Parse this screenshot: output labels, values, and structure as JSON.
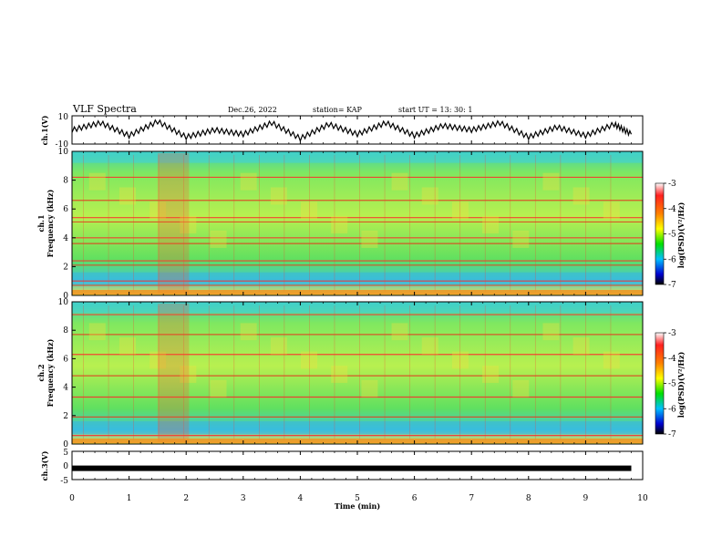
{
  "header": {
    "title": "VLF Spectra",
    "date": "Dec.26, 2022",
    "station": "station= KAP",
    "start": "start  UT =   13: 30: 1"
  },
  "colorbar": {
    "label": "log(PSD)(V²/Hz)",
    "ticks": [
      "-3",
      "-4",
      "-5",
      "-6",
      "-7"
    ],
    "colors": [
      "#ff2020",
      "#ff7f00",
      "#ffff00",
      "#00e000",
      "#00c0ff",
      "#0000cc",
      "#000000"
    ]
  },
  "chart_data": [
    {
      "type": "line",
      "panel": "ch1_waveform",
      "ylabel": "ch.1(V)",
      "ylim": [
        -10,
        10
      ],
      "yticks": [
        "10",
        "-10"
      ],
      "x": [
        0,
        0.5,
        1.0,
        1.5,
        2.0,
        2.5,
        3.0,
        3.5,
        4.0,
        4.5,
        5.0,
        5.5,
        6.0,
        6.5,
        7.0,
        7.5,
        8.0,
        8.5,
        9.0,
        9.5,
        9.8
      ],
      "values": [
        0,
        5,
        -4,
        6,
        -5,
        0,
        -3,
        5,
        -6,
        4,
        -3,
        5,
        -4,
        3,
        0,
        5,
        -5,
        2,
        -4,
        4,
        -3
      ]
    },
    {
      "type": "heatmap",
      "panel": "ch1_spectrogram",
      "ylabel_top": "ch.1",
      "ylabel": "Frequency (kHz)",
      "ylim": [
        0,
        10
      ],
      "yticks": [
        "0",
        "2",
        "4",
        "6",
        "8",
        "10"
      ],
      "xlim": [
        0,
        10
      ]
    },
    {
      "type": "heatmap",
      "panel": "ch2_spectrogram",
      "ylabel_top": "ch.2",
      "ylabel": "Frequency (kHz)",
      "ylim": [
        0,
        10
      ],
      "yticks": [
        "0",
        "2",
        "4",
        "6",
        "8",
        "10"
      ],
      "xlim": [
        0,
        10
      ]
    },
    {
      "type": "line",
      "panel": "ch3_waveform",
      "ylabel": "ch.3(V)",
      "ylim": [
        -5,
        5
      ],
      "yticks": [
        "5",
        "0",
        "-5"
      ],
      "x": [
        0,
        9.8
      ],
      "values": [
        -1,
        -1
      ]
    }
  ],
  "xaxis": {
    "label": "Time  (min)",
    "ticks": [
      "0",
      "1",
      "2",
      "3",
      "4",
      "5",
      "6",
      "7",
      "8",
      "9",
      "10"
    ]
  }
}
